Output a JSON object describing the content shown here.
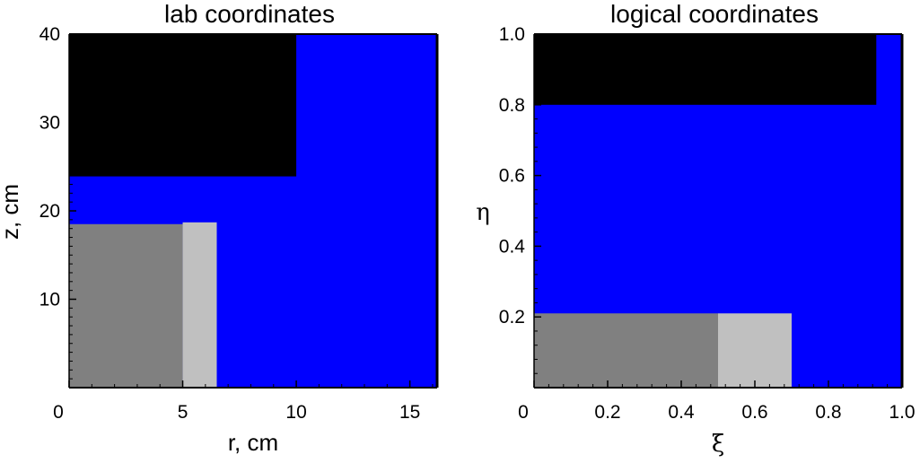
{
  "chart_data": [
    {
      "type": "region-map",
      "title": "lab coordinates",
      "xlabel": "r, cm",
      "ylabel": "z, cm",
      "xlim": [
        0,
        16.2
      ],
      "ylim": [
        0,
        40
      ],
      "xticks": [
        {
          "v": 0,
          "label": "0"
        },
        {
          "v": 5,
          "label": "5"
        },
        {
          "v": 10,
          "label": "10"
        },
        {
          "v": 15,
          "label": "15"
        }
      ],
      "yticks": [
        {
          "v": 10,
          "label": "10"
        },
        {
          "v": 20,
          "label": "20"
        },
        {
          "v": 30,
          "label": "30"
        },
        {
          "v": 40,
          "label": "40"
        }
      ],
      "regions": [
        {
          "name": "blue-region",
          "color": "#0000ff",
          "x": [
            0,
            16.2
          ],
          "y": [
            0,
            40
          ]
        },
        {
          "name": "black-region",
          "color": "#000000",
          "x": [
            0,
            10
          ],
          "y": [
            23.9,
            40
          ]
        },
        {
          "name": "dark-gray-region",
          "color": "#808080",
          "x": [
            0,
            5
          ],
          "y": [
            0,
            18.5
          ]
        },
        {
          "name": "light-gray-region",
          "color": "#c0c0c0",
          "x": [
            5,
            6.5
          ],
          "y": [
            0,
            18.7
          ]
        }
      ],
      "grid": false,
      "legend": "none"
    },
    {
      "type": "region-map",
      "title": "logical coordinates",
      "xlabel": "ξ",
      "ylabel": "η",
      "xlim": [
        0,
        1
      ],
      "ylim": [
        0,
        1
      ],
      "xticks": [
        {
          "v": 0,
          "label": "0"
        },
        {
          "v": 0.2,
          "label": "0.2"
        },
        {
          "v": 0.4,
          "label": "0.4"
        },
        {
          "v": 0.6,
          "label": "0.6"
        },
        {
          "v": 0.8,
          "label": "0.8"
        },
        {
          "v": 1.0,
          "label": "1.0"
        }
      ],
      "yticks": [
        {
          "v": 0.2,
          "label": "0.2"
        },
        {
          "v": 0.4,
          "label": "0.4"
        },
        {
          "v": 0.6,
          "label": "0.6"
        },
        {
          "v": 0.8,
          "label": "0.8"
        },
        {
          "v": 1.0,
          "label": "1.0"
        }
      ],
      "regions": [
        {
          "name": "blue-region",
          "color": "#0000ff",
          "x": [
            0,
            1
          ],
          "y": [
            0,
            1
          ]
        },
        {
          "name": "black-region",
          "color": "#000000",
          "x": [
            0,
            0.93
          ],
          "y": [
            0.8,
            1
          ]
        },
        {
          "name": "dark-gray-region",
          "color": "#808080",
          "x": [
            0,
            0.5
          ],
          "y": [
            0,
            0.21
          ]
        },
        {
          "name": "light-gray-region",
          "color": "#c0c0c0",
          "x": [
            0.5,
            0.7
          ],
          "y": [
            0,
            0.21
          ]
        }
      ],
      "grid": false,
      "legend": "none"
    }
  ]
}
